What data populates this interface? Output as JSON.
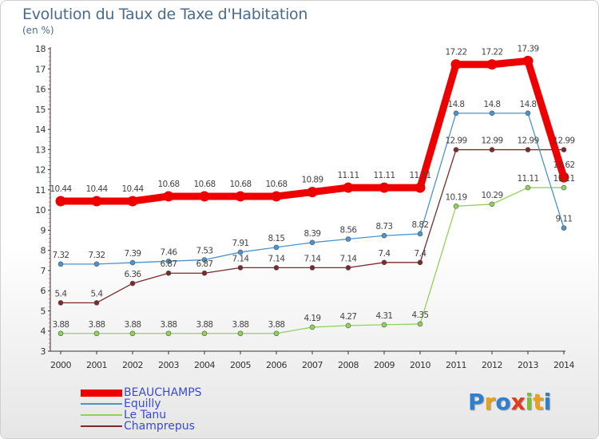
{
  "chart_data": {
    "type": "line",
    "title": "Evolution du Taux de Taxe d'Habitation",
    "subtitle": "(en %)",
    "xlabel": "",
    "ylabel": "",
    "categories": [
      "2000",
      "2001",
      "2002",
      "2003",
      "2004",
      "2005",
      "2006",
      "2007",
      "2008",
      "2009",
      "2010",
      "2011",
      "2012",
      "2013",
      "2014"
    ],
    "ylim": [
      3,
      18
    ],
    "yticks": [
      3,
      4,
      5,
      6,
      7,
      8,
      9,
      10,
      11,
      12,
      13,
      14,
      15,
      16,
      17,
      18
    ],
    "series": [
      {
        "name": "BEAUCHAMPS",
        "color": "#ee0000",
        "values": [
          10.44,
          10.44,
          10.44,
          10.68,
          10.68,
          10.68,
          10.68,
          10.89,
          11.11,
          11.11,
          11.11,
          17.22,
          17.22,
          17.39,
          11.62
        ],
        "labels": [
          "10.44",
          "10.44",
          "10.44",
          "10.68",
          "10.68",
          "10.68",
          "10.68",
          "10.89",
          "11.11",
          "11.11",
          "11.11",
          "17.22",
          "17.22",
          "17.39",
          "11.62"
        ]
      },
      {
        "name": "Equilly",
        "color": "#4d93cc",
        "values": [
          7.32,
          7.32,
          7.39,
          7.46,
          7.53,
          7.91,
          8.15,
          8.39,
          8.56,
          8.73,
          8.82,
          14.8,
          14.8,
          14.8,
          9.11
        ],
        "labels": [
          "7.32",
          "7.32",
          "7.39",
          "7.46",
          "7.53",
          "7.91",
          "8.15",
          "8.39",
          "8.56",
          "8.73",
          "8.82",
          "14.8",
          "14.8",
          "14.8",
          "9.11"
        ]
      },
      {
        "name": "Le Tanu",
        "color": "#92d25a",
        "values": [
          3.88,
          3.88,
          3.88,
          3.88,
          3.88,
          3.88,
          3.88,
          4.19,
          4.27,
          4.31,
          4.35,
          10.19,
          10.29,
          11.11,
          11.11
        ],
        "labels": [
          "3.88",
          "3.88",
          "3.88",
          "3.88",
          "3.88",
          "3.88",
          "3.88",
          "4.19",
          "4.27",
          "4.31",
          "4.35",
          "10.19",
          "10.29",
          "11.11",
          "11.11"
        ]
      },
      {
        "name": "Champrepus",
        "color": "#7a2a2a",
        "values": [
          5.4,
          5.4,
          6.36,
          6.87,
          6.87,
          7.14,
          7.14,
          7.14,
          7.14,
          7.4,
          7.4,
          12.99,
          12.99,
          12.99,
          12.99
        ],
        "labels": [
          "5.4",
          "5.4",
          "6.36",
          "6.87",
          "6.87",
          "7.14",
          "7.14",
          "7.14",
          "7.14",
          "7.4",
          "7.4",
          "12.99",
          "12.99",
          "12.99",
          "12.99"
        ]
      }
    ],
    "grid": false,
    "legend": "bottom-left"
  },
  "legend": {
    "items": [
      "BEAUCHAMPS",
      "Equilly",
      "Le Tanu",
      "Champrepus"
    ]
  },
  "logo": {
    "letters": [
      "P",
      "r",
      "o",
      "x",
      "i",
      "t",
      "i"
    ],
    "colors": [
      "#2f7fd0",
      "#e8a21a",
      "#2f7fd0",
      "#e23b1f",
      "#7cbf2e",
      "#e8a21a",
      "#2f7fd0"
    ]
  }
}
